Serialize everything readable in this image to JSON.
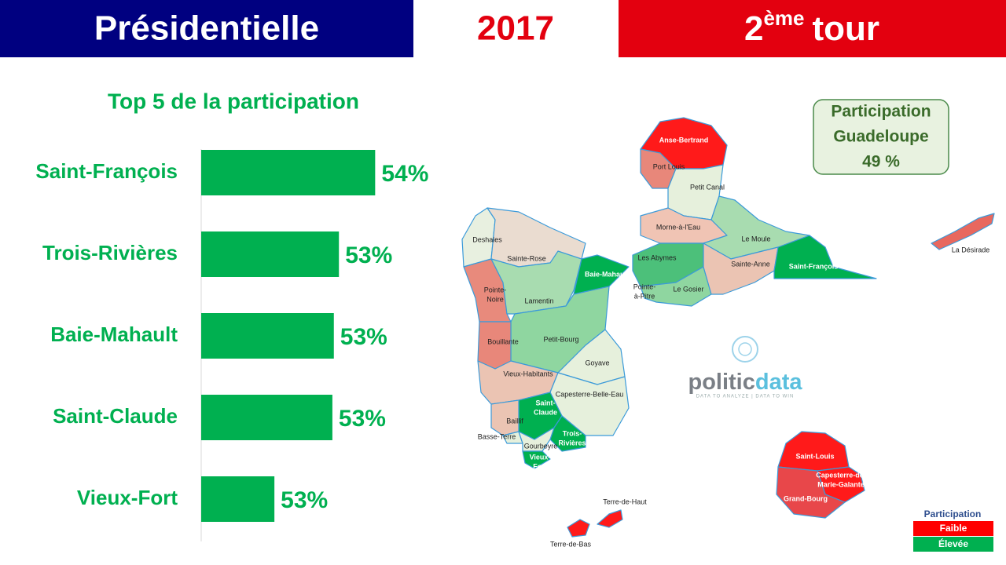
{
  "header": {
    "left": "Présidentielle",
    "center": "2017",
    "right": {
      "number": "2",
      "sup": "ème",
      "word": "tour"
    }
  },
  "chart_data": {
    "type": "bar",
    "orientation": "horizontal",
    "title": "Top 5 de la participation",
    "categories": [
      "Saint-François",
      "Trois-Rivières",
      "Baie-Mahault",
      "Saint-Claude",
      "Vieux-Fort"
    ],
    "values": [
      53.9,
      53.4,
      53.33,
      53.31,
      52.51
    ],
    "value_labels": [
      "54%",
      "53%",
      "53%",
      "53%",
      "53%"
    ],
    "color": "#00b050",
    "xlim": [
      51.5,
      54.2
    ]
  },
  "summary": {
    "lines": [
      "Participation",
      "Guadeloupe"
    ],
    "value": "49 %"
  },
  "logo": {
    "part1": "politic",
    "part2": "data",
    "tagline": "DATA TO ANALYZE | DATA TO WIN"
  },
  "legend": {
    "title": "Participation",
    "items": [
      "Faible",
      "Élevée"
    ]
  },
  "map": {
    "labels": [
      {
        "lines": [
          "Anse-Bertrand"
        ]
      },
      {
        "lines": [
          "Port Louis"
        ]
      },
      {
        "lines": [
          "Petit Canal"
        ]
      },
      {
        "lines": [
          "Morne-à-l'Eau"
        ]
      },
      {
        "lines": [
          "Le Moule"
        ]
      },
      {
        "lines": [
          "Les Abymes"
        ]
      },
      {
        "lines": [
          "Sainte-Anne"
        ]
      },
      {
        "lines": [
          "Saint-François"
        ]
      },
      {
        "lines": [
          "Le Gosier"
        ]
      },
      {
        "lines": [
          "Pointe-",
          "à-Pitre"
        ]
      },
      {
        "lines": [
          "Deshaies"
        ]
      },
      {
        "lines": [
          "Sainte-Rose"
        ]
      },
      {
        "lines": [
          "Baie-Mahault"
        ]
      },
      {
        "lines": [
          "Pointe-",
          "Noire"
        ]
      },
      {
        "lines": [
          "Lamentin"
        ]
      },
      {
        "lines": [
          "Petit-Bourg"
        ]
      },
      {
        "lines": [
          "Bouillante"
        ]
      },
      {
        "lines": [
          "Goyave"
        ]
      },
      {
        "lines": [
          "Vieux-Habitants"
        ]
      },
      {
        "lines": [
          "Capesterre-Belle-Eau"
        ]
      },
      {
        "lines": [
          "Saint-",
          "Claude"
        ]
      },
      {
        "lines": [
          "Baillif"
        ]
      },
      {
        "lines": [
          "Basse-Terre"
        ]
      },
      {
        "lines": [
          "Trois-",
          "Rivières"
        ]
      },
      {
        "lines": [
          "Gourbeyre"
        ]
      },
      {
        "lines": [
          "Vieux-",
          "Fort"
        ]
      },
      {
        "lines": [
          "Saint-Louis"
        ]
      },
      {
        "lines": [
          "Capesterre-de-",
          "Marie-Galante"
        ]
      },
      {
        "lines": [
          "Grand-Bourg"
        ]
      },
      {
        "lines": [
          "La Désirade"
        ]
      },
      {
        "lines": [
          "Terre-de-Haut"
        ]
      },
      {
        "lines": [
          "Terre-de-Bas"
        ]
      }
    ]
  }
}
